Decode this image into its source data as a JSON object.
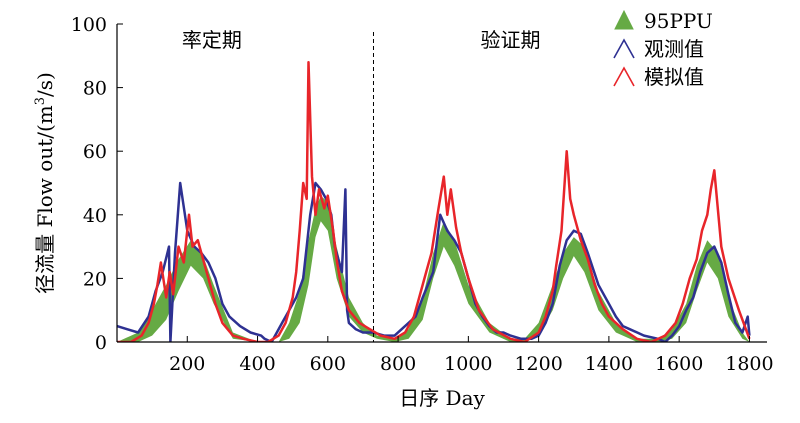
{
  "chart_data": {
    "type": "line",
    "xlabel": "日序 Day",
    "ylabel": "径流量 Flow out/(m³/s)",
    "ylabel_parts": {
      "before_sup": "径流量 Flow out/(m",
      "sup": "3",
      "after_sup": "/s)"
    },
    "xlim": [
      0,
      1850
    ],
    "ylim": [
      0,
      100
    ],
    "x_ticks": [
      200,
      400,
      600,
      800,
      1000,
      1200,
      1400,
      1600,
      1800
    ],
    "y_ticks": [
      0,
      20,
      40,
      60,
      80,
      100
    ],
    "grid": false,
    "legend_position": "top-right",
    "legend": [
      {
        "label": "95PPU",
        "color": "#66aa44",
        "marker": "filled-triangle"
      },
      {
        "label": "观测值",
        "color": "#2e3192",
        "marker": "open-triangle"
      },
      {
        "label": "模拟值",
        "color": "#e8252a",
        "marker": "open-triangle"
      }
    ],
    "period_divider_x": 730,
    "period_labels": [
      {
        "text": "率定期",
        "x": 270
      },
      {
        "text": "验证期",
        "x": 1120
      }
    ],
    "colors": {
      "ppu": "#66aa44",
      "observed": "#2e3192",
      "simulated": "#e8252a"
    },
    "series": [
      {
        "name": "95PPU",
        "x": [
          0,
          60,
          100,
          140,
          175,
          210,
          245,
          275,
          330,
          400,
          460,
          490,
          520,
          545,
          565,
          580,
          600,
          625,
          660,
          700,
          740,
          790,
          830,
          870,
          900,
          930,
          960,
          1000,
          1060,
          1120,
          1160,
          1200,
          1240,
          1270,
          1300,
          1330,
          1370,
          1420,
          1480,
          1540,
          1580,
          1620,
          1650,
          1680,
          1710,
          1740,
          1780,
          1800
        ],
        "lower": [
          0,
          0,
          2,
          7,
          16,
          24,
          20,
          12,
          1,
          0,
          0,
          1,
          6,
          18,
          33,
          38,
          35,
          20,
          8,
          3,
          1,
          0,
          1,
          7,
          20,
          30,
          24,
          12,
          3,
          0,
          0,
          2,
          10,
          20,
          27,
          22,
          10,
          3,
          0,
          0,
          1,
          6,
          16,
          25,
          20,
          8,
          1,
          0
        ],
        "upper": [
          0,
          3,
          10,
          18,
          26,
          32,
          27,
          18,
          3,
          0,
          0,
          6,
          16,
          32,
          42,
          46,
          44,
          30,
          14,
          6,
          2,
          1,
          4,
          14,
          28,
          38,
          32,
          18,
          6,
          1,
          1,
          6,
          18,
          28,
          33,
          30,
          16,
          6,
          1,
          1,
          4,
          12,
          24,
          32,
          28,
          14,
          3,
          0
        ]
      },
      {
        "name": "观测值",
        "x": [
          0,
          30,
          60,
          90,
          110,
          130,
          148,
          152,
          165,
          180,
          200,
          220,
          240,
          260,
          280,
          300,
          320,
          350,
          380,
          410,
          420,
          440,
          470,
          490,
          510,
          530,
          540,
          550,
          565,
          580,
          595,
          610,
          620,
          640,
          650,
          655,
          660,
          680,
          700,
          730,
          760,
          790,
          820,
          850,
          870,
          900,
          920,
          940,
          960,
          980,
          1000,
          1020,
          1040,
          1060,
          1080,
          1100,
          1120,
          1150,
          1180,
          1200,
          1220,
          1240,
          1260,
          1280,
          1300,
          1320,
          1340,
          1370,
          1400,
          1420,
          1440,
          1460,
          1500,
          1540,
          1560,
          1580,
          1600,
          1620,
          1640,
          1660,
          1680,
          1700,
          1720,
          1740,
          1760,
          1780,
          1795,
          1800
        ],
        "values": [
          5,
          4,
          3,
          8,
          16,
          22,
          30,
          0,
          28,
          50,
          35,
          30,
          28,
          25,
          20,
          12,
          8,
          5,
          3,
          2,
          1,
          0,
          6,
          10,
          14,
          20,
          30,
          40,
          50,
          48,
          45,
          40,
          30,
          22,
          48,
          10,
          6,
          4,
          3,
          3,
          2,
          2,
          5,
          8,
          14,
          22,
          40,
          35,
          32,
          28,
          20,
          12,
          8,
          5,
          3,
          3,
          2,
          1,
          1,
          2,
          6,
          12,
          24,
          32,
          35,
          34,
          28,
          18,
          12,
          8,
          5,
          4,
          2,
          1,
          0,
          2,
          5,
          10,
          14,
          22,
          28,
          30,
          25,
          15,
          6,
          3,
          8,
          2
        ]
      },
      {
        "name": "模拟值",
        "x": [
          0,
          40,
          70,
          90,
          105,
          115,
          125,
          140,
          150,
          160,
          175,
          190,
          205,
          215,
          230,
          245,
          260,
          280,
          300,
          330,
          360,
          400,
          430,
          460,
          480,
          500,
          510,
          520,
          530,
          540,
          545,
          555,
          565,
          575,
          590,
          600,
          615,
          625,
          640,
          660,
          690,
          720,
          750,
          790,
          820,
          845,
          860,
          880,
          895,
          905,
          915,
          930,
          940,
          950,
          965,
          980,
          1000,
          1030,
          1070,
          1120,
          1160,
          1200,
          1220,
          1240,
          1250,
          1265,
          1280,
          1290,
          1300,
          1320,
          1340,
          1360,
          1380,
          1400,
          1440,
          1480,
          1520,
          1560,
          1590,
          1610,
          1630,
          1650,
          1665,
          1680,
          1690,
          1700,
          1720,
          1740,
          1770,
          1800
        ],
        "values": [
          0,
          0,
          2,
          6,
          12,
          18,
          25,
          14,
          22,
          15,
          30,
          25,
          40,
          30,
          32,
          26,
          20,
          12,
          6,
          2,
          1,
          0,
          0,
          2,
          6,
          14,
          22,
          35,
          50,
          45,
          88,
          52,
          40,
          48,
          42,
          46,
          35,
          26,
          16,
          10,
          6,
          4,
          2,
          1,
          3,
          8,
          14,
          22,
          28,
          35,
          42,
          52,
          40,
          48,
          36,
          28,
          20,
          10,
          4,
          1,
          0,
          3,
          8,
          16,
          24,
          35,
          60,
          45,
          40,
          32,
          26,
          18,
          12,
          8,
          4,
          1,
          0,
          2,
          6,
          12,
          20,
          26,
          35,
          40,
          48,
          54,
          30,
          20,
          10,
          1
        ]
      }
    ]
  }
}
